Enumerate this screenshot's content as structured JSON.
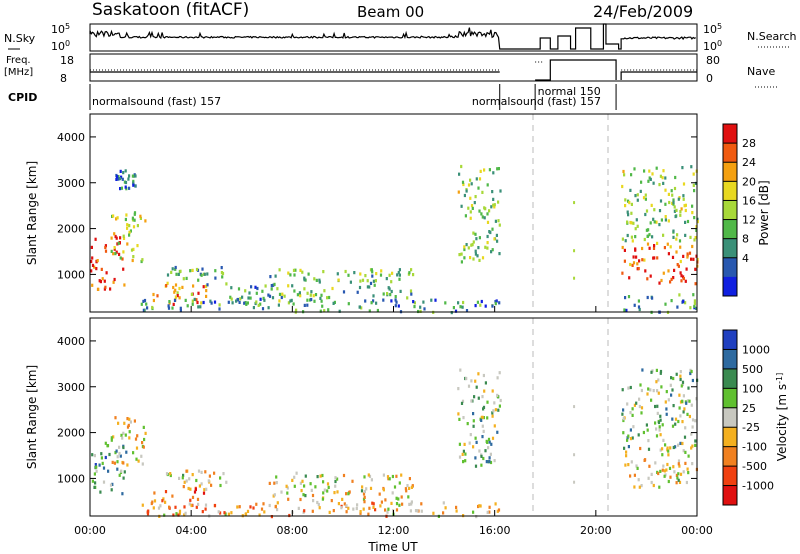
{
  "header": {
    "station": "Saskatoon (fitACF)",
    "beam": "Beam 00",
    "date": "24/Feb/2009"
  },
  "nsky_panel": {
    "left_label": "N.Sky",
    "right_label": "N.Search",
    "left_ticks": [
      "10^5",
      "10^0"
    ],
    "right_ticks": [
      "10^5",
      "10^0"
    ]
  },
  "freq_panel": {
    "left_label_1": "Freq.",
    "left_label_2": "[MHz]",
    "right_label": "Nave",
    "left_ticks": [
      "18",
      "8"
    ],
    "right_ticks": [
      "80",
      "0"
    ]
  },
  "cpid": {
    "label": "CPID",
    "modes": [
      {
        "name": "normalsound (fast) 157",
        "start_h": 0,
        "end_h": 16.2
      },
      {
        "name": "normalsound (fast) 157",
        "start_h": 16.2,
        "end_h": 17.6
      },
      {
        "name": "normal 150",
        "start_h": 17.6,
        "end_h": 20.8
      }
    ]
  },
  "chart_data": [
    {
      "type": "heatmap",
      "name": "power",
      "ylabel": "Slant Range [km]",
      "xlabel": "Time UT",
      "xlim_hours": [
        0,
        24
      ],
      "ylim": [
        180,
        4500
      ],
      "yticks": [
        1000,
        2000,
        3000,
        4000
      ],
      "xticks": [
        "00:00",
        "04:00",
        "08:00",
        "12:00",
        "16:00",
        "20:00",
        "00:00"
      ],
      "colorbar": {
        "label": "Power [dB]",
        "ticks": [
          28,
          24,
          20,
          16,
          12,
          8,
          4
        ],
        "colors": [
          "#e01010",
          "#f05a10",
          "#f4a010",
          "#e8d820",
          "#a8d838",
          "#50b848",
          "#3a9078",
          "#2858b0",
          "#1020e0"
        ]
      },
      "scatter_regions": [
        {
          "t0": 0.0,
          "t1": 1.4,
          "r0": 700,
          "r1": 1900,
          "level": 0.95
        },
        {
          "t0": 0.8,
          "t1": 2.2,
          "r0": 1300,
          "r1": 2400,
          "level": 0.55
        },
        {
          "t0": 1.0,
          "t1": 1.8,
          "r0": 2900,
          "r1": 3300,
          "level": 0.2
        },
        {
          "t0": 2.4,
          "t1": 4.6,
          "r0": 350,
          "r1": 850,
          "level": 0.75
        },
        {
          "t0": 3.0,
          "t1": 5.4,
          "r0": 800,
          "r1": 1200,
          "level": 0.35
        },
        {
          "t0": 5.5,
          "t1": 7.2,
          "r0": 400,
          "r1": 800,
          "level": 0.3
        },
        {
          "t0": 7.0,
          "t1": 12.8,
          "r0": 450,
          "r1": 1150,
          "level": 0.4
        },
        {
          "t0": 2.0,
          "t1": 16.2,
          "r0": 200,
          "r1": 500,
          "level": 0.3
        },
        {
          "t0": 14.5,
          "t1": 16.2,
          "r0": 1300,
          "r1": 3400,
          "level": 0.45
        },
        {
          "t0": 21.0,
          "t1": 24.0,
          "r0": 800,
          "r1": 1700,
          "level": 0.85
        },
        {
          "t0": 21.0,
          "t1": 24.0,
          "r0": 1700,
          "r1": 3400,
          "level": 0.45
        },
        {
          "t0": 21.0,
          "t1": 24.0,
          "r0": 200,
          "r1": 600,
          "level": 0.3
        }
      ]
    },
    {
      "type": "heatmap",
      "name": "velocity",
      "ylabel": "Slant Range [km]",
      "xlabel": "Time UT",
      "xlim_hours": [
        0,
        24
      ],
      "ylim": [
        180,
        4500
      ],
      "yticks": [
        1000,
        2000,
        3000,
        4000
      ],
      "xticks": [
        "00:00",
        "04:00",
        "08:00",
        "12:00",
        "16:00",
        "20:00",
        "00:00"
      ],
      "colorbar": {
        "label": "Velocity [m s^-1]",
        "ticks": [
          "1000",
          "500",
          "100",
          "25",
          "-25",
          "-100",
          "-500",
          "-1000"
        ],
        "colors": [
          "#2040c0",
          "#2e6aa0",
          "#3a8a50",
          "#60c030",
          "#c8c8c0",
          "#f4b020",
          "#f08020",
          "#f04010",
          "#e01010"
        ]
      },
      "scatter_regions": [
        {
          "t0": 0.0,
          "t1": 1.4,
          "r0": 700,
          "r1": 1900,
          "level": 0.72
        },
        {
          "t0": 0.8,
          "t1": 2.2,
          "r0": 1300,
          "r1": 2400,
          "level": 0.45
        },
        {
          "t0": 2.4,
          "t1": 4.6,
          "r0": 350,
          "r1": 850,
          "level": 0.3
        },
        {
          "t0": 3.0,
          "t1": 5.4,
          "r0": 800,
          "r1": 1200,
          "level": 0.45
        },
        {
          "t0": 7.0,
          "t1": 12.8,
          "r0": 450,
          "r1": 1150,
          "level": 0.45
        },
        {
          "t0": 2.0,
          "t1": 16.2,
          "r0": 200,
          "r1": 500,
          "level": 0.35
        },
        {
          "t0": 14.5,
          "t1": 16.2,
          "r0": 1300,
          "r1": 3400,
          "level": 0.6
        },
        {
          "t0": 21.0,
          "t1": 24.0,
          "r0": 800,
          "r1": 1700,
          "level": 0.45
        },
        {
          "t0": 21.0,
          "t1": 24.0,
          "r0": 1700,
          "r1": 3400,
          "level": 0.62
        }
      ]
    }
  ]
}
